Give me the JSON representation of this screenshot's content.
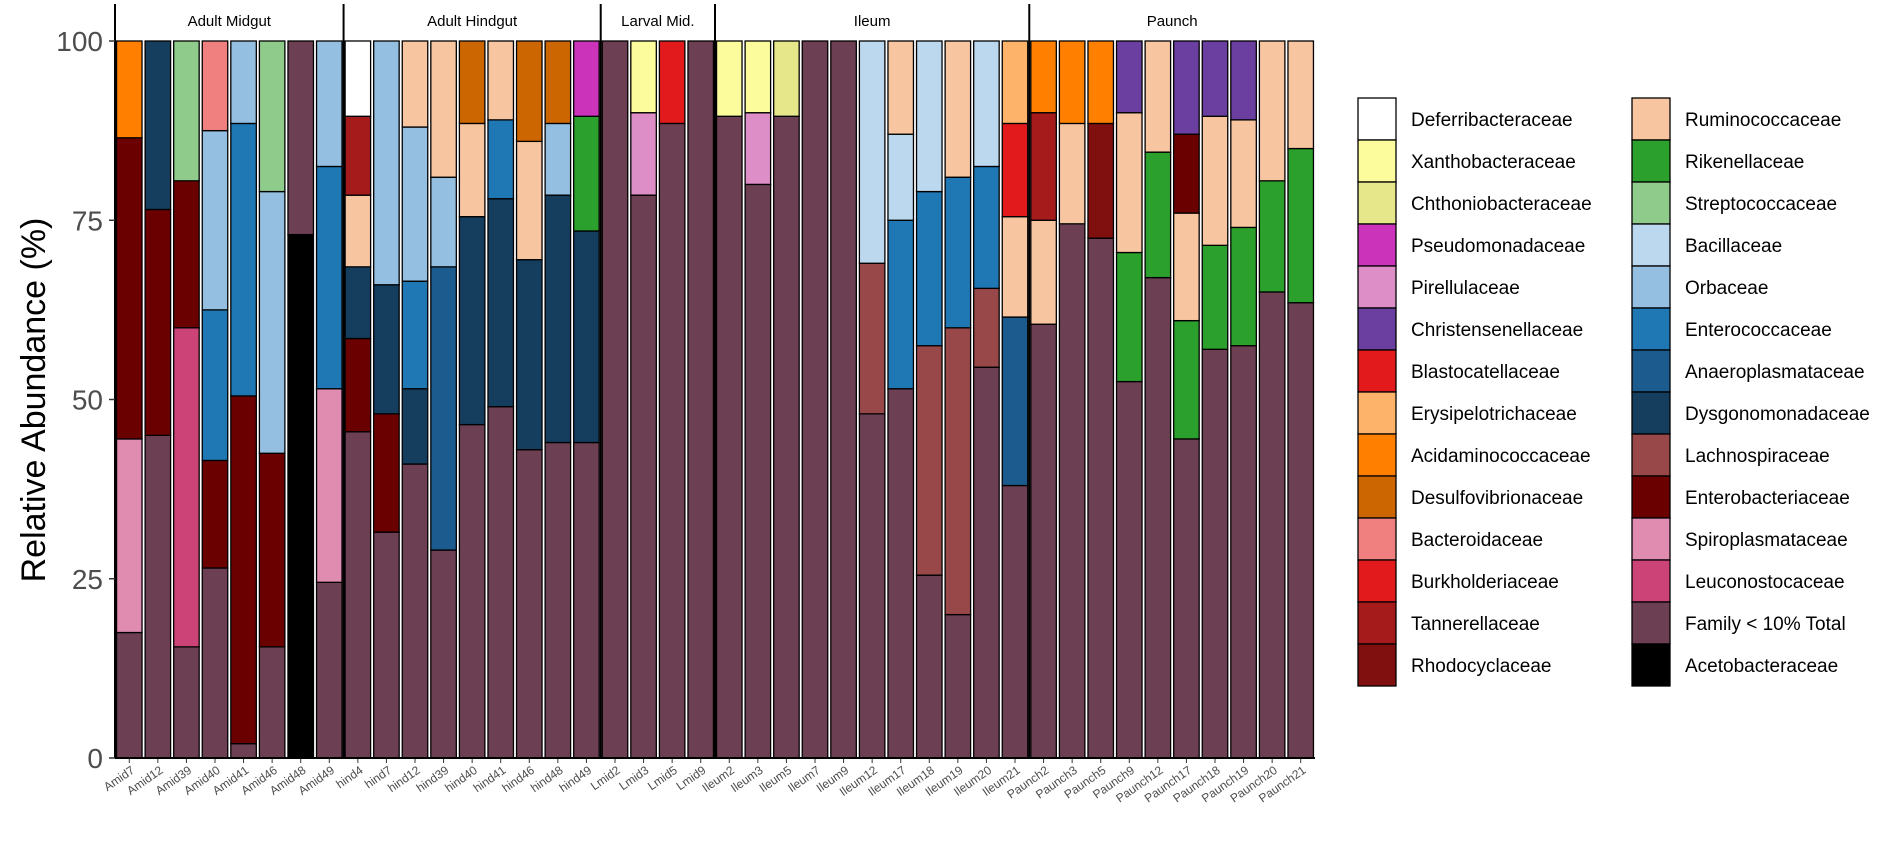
{
  "chart_data": {
    "type": "bar",
    "subtype": "stacked-100",
    "ylabel": "Relative Abundance (%)",
    "ylim": [
      0,
      100
    ],
    "yticks": [
      0,
      25,
      50,
      75,
      100
    ],
    "xlabel": "",
    "facets": [
      {
        "name": "Adult Midgut",
        "samples": [
          {
            "name": "Amid7",
            "segments": [
              [
                "Family < 10% Total",
                17.5
              ],
              [
                "Spiroplasmataceae",
                27
              ],
              [
                "Enterobacteriaceae",
                42
              ],
              [
                "Acidaminococcaceae",
                13.5
              ]
            ]
          },
          {
            "name": "Amid12",
            "segments": [
              [
                "Family < 10% Total",
                45
              ],
              [
                "Enterobacteriaceae",
                31.5
              ],
              [
                "Dysgonomonadaceae",
                23.5
              ]
            ]
          },
          {
            "name": "Amid39",
            "segments": [
              [
                "Family < 10% Total",
                15.5
              ],
              [
                "Leuconostocaceae",
                44.5
              ],
              [
                "Enterobacteriaceae",
                20.5
              ],
              [
                "Streptococcaceae",
                19.5
              ]
            ]
          },
          {
            "name": "Amid40",
            "segments": [
              [
                "Family < 10% Total",
                26.5
              ],
              [
                "Enterobacteriaceae",
                15
              ],
              [
                "Enterococcaceae",
                21
              ],
              [
                "Orbaceae",
                25
              ],
              [
                "Bacteroidaceae",
                12.5
              ]
            ]
          },
          {
            "name": "Amid41",
            "segments": [
              [
                "Family < 10% Total",
                2
              ],
              [
                "Enterobacteriaceae",
                48.5
              ],
              [
                "Enterococcaceae",
                38
              ],
              [
                "Orbaceae",
                11.5
              ]
            ]
          },
          {
            "name": "Amid46",
            "segments": [
              [
                "Family < 10% Total",
                15.5
              ],
              [
                "Enterobacteriaceae",
                27
              ],
              [
                "Orbaceae",
                36.5
              ],
              [
                "Streptococcaceae",
                21
              ]
            ]
          },
          {
            "name": "Amid48",
            "segments": [
              [
                "Acetobacteraceae",
                73
              ],
              [
                "Family < 10% Total",
                27
              ]
            ]
          },
          {
            "name": "Amid49",
            "segments": [
              [
                "Family < 10% Total",
                24.5
              ],
              [
                "Spiroplasmataceae",
                27
              ],
              [
                "Enterococcaceae",
                31
              ],
              [
                "Orbaceae",
                17.5
              ]
            ]
          }
        ]
      },
      {
        "name": "Adult Hindgut",
        "samples": [
          {
            "name": "hind4",
            "segments": [
              [
                "Family < 10% Total",
                45.5
              ],
              [
                "Enterobacteriaceae",
                13
              ],
              [
                "Dysgonomonadaceae",
                10
              ],
              [
                "Ruminococcaceae",
                10
              ],
              [
                "Tannerellaceae",
                11
              ],
              [
                "Deferribacteraceae",
                10.5
              ]
            ]
          },
          {
            "name": "hind7",
            "segments": [
              [
                "Family < 10% Total",
                31.5
              ],
              [
                "Enterobacteriaceae",
                16.5
              ],
              [
                "Dysgonomonadaceae",
                18
              ],
              [
                "Orbaceae",
                34
              ]
            ]
          },
          {
            "name": "hind12",
            "segments": [
              [
                "Family < 10% Total",
                41
              ],
              [
                "Dysgonomonadaceae",
                10.5
              ],
              [
                "Enterococcaceae",
                15
              ],
              [
                "Orbaceae",
                21.5
              ],
              [
                "Ruminococcaceae",
                12
              ]
            ]
          },
          {
            "name": "hind39",
            "segments": [
              [
                "Family < 10% Total",
                29
              ],
              [
                "Anaeroplasmataceae",
                39.5
              ],
              [
                "Orbaceae",
                12.5
              ],
              [
                "Ruminococcaceae",
                19
              ]
            ]
          },
          {
            "name": "hind40",
            "segments": [
              [
                "Family < 10% Total",
                46.5
              ],
              [
                "Dysgonomonadaceae",
                29
              ],
              [
                "Ruminococcaceae",
                13
              ],
              [
                "Desulfovibrionaceae",
                11.5
              ]
            ]
          },
          {
            "name": "hind41",
            "segments": [
              [
                "Family < 10% Total",
                49
              ],
              [
                "Dysgonomonadaceae",
                29
              ],
              [
                "Enterococcaceae",
                11
              ],
              [
                "Ruminococcaceae",
                11
              ]
            ]
          },
          {
            "name": "hind46",
            "segments": [
              [
                "Family < 10% Total",
                43
              ],
              [
                "Dysgonomonadaceae",
                26.5
              ],
              [
                "Ruminococcaceae",
                16.5
              ],
              [
                "Desulfovibrionaceae",
                14
              ]
            ]
          },
          {
            "name": "hind48",
            "segments": [
              [
                "Family < 10% Total",
                44
              ],
              [
                "Dysgonomonadaceae",
                34.5
              ],
              [
                "Orbaceae",
                10
              ],
              [
                "Desulfovibrionaceae",
                11.5
              ]
            ]
          },
          {
            "name": "hind49",
            "segments": [
              [
                "Family < 10% Total",
                44
              ],
              [
                "Dysgonomonadaceae",
                29.5
              ],
              [
                "Rikenellaceae",
                16
              ],
              [
                "Pseudomonadaceae",
                10.5
              ]
            ]
          }
        ]
      },
      {
        "name": "Larval Mid.",
        "samples": [
          {
            "name": "Lmid2",
            "segments": [
              [
                "Family < 10% Total",
                100
              ]
            ]
          },
          {
            "name": "Lmid3",
            "segments": [
              [
                "Family < 10% Total",
                78.5
              ],
              [
                "Pirellulaceae",
                11.5
              ],
              [
                "Xanthobacteraceae",
                10
              ]
            ]
          },
          {
            "name": "Lmid5",
            "segments": [
              [
                "Family < 10% Total",
                88.5
              ],
              [
                "Burkholderiaceae",
                11.5
              ]
            ]
          },
          {
            "name": "Lmid9",
            "segments": [
              [
                "Family < 10% Total",
                100
              ]
            ]
          }
        ]
      },
      {
        "name": "Ileum",
        "samples": [
          {
            "name": "Ileum2",
            "segments": [
              [
                "Family < 10% Total",
                89.5
              ],
              [
                "Xanthobacteraceae",
                10.5
              ]
            ]
          },
          {
            "name": "Ileum3",
            "segments": [
              [
                "Family < 10% Total",
                80
              ],
              [
                "Pirellulaceae",
                10
              ],
              [
                "Xanthobacteraceae",
                10
              ]
            ]
          },
          {
            "name": "Ileum5",
            "segments": [
              [
                "Family < 10% Total",
                89.5
              ],
              [
                "Chthoniobacteraceae",
                10.5
              ]
            ]
          },
          {
            "name": "Ileum7",
            "segments": [
              [
                "Family < 10% Total",
                100
              ]
            ]
          },
          {
            "name": "Ileum9",
            "segments": [
              [
                "Family < 10% Total",
                100
              ]
            ]
          },
          {
            "name": "Ileum12",
            "segments": [
              [
                "Family < 10% Total",
                48
              ],
              [
                "Lachnospiraceae",
                21
              ],
              [
                "Bacillaceae",
                31
              ]
            ]
          },
          {
            "name": "Ileum17",
            "segments": [
              [
                "Family < 10% Total",
                51.5
              ],
              [
                "Enterococcaceae",
                23.5
              ],
              [
                "Bacillaceae",
                12
              ],
              [
                "Ruminococcaceae",
                13
              ]
            ]
          },
          {
            "name": "Ileum18",
            "segments": [
              [
                "Family < 10% Total",
                25.5
              ],
              [
                "Lachnospiraceae",
                32
              ],
              [
                "Enterococcaceae",
                21.5
              ],
              [
                "Bacillaceae",
                21
              ]
            ]
          },
          {
            "name": "Ileum19",
            "segments": [
              [
                "Family < 10% Total",
                20
              ],
              [
                "Lachnospiraceae",
                40
              ],
              [
                "Enterococcaceae",
                21
              ],
              [
                "Ruminococcaceae",
                19
              ]
            ]
          },
          {
            "name": "Ileum20",
            "segments": [
              [
                "Family < 10% Total",
                54.5
              ],
              [
                "Lachnospiraceae",
                11
              ],
              [
                "Enterococcaceae",
                17
              ],
              [
                "Bacillaceae",
                17.5
              ]
            ]
          },
          {
            "name": "Ileum21",
            "segments": [
              [
                "Family < 10% Total",
                38
              ],
              [
                "Anaeroplasmataceae",
                23.5
              ],
              [
                "Ruminococcaceae",
                14
              ],
              [
                "Blastocatellaceae",
                13
              ],
              [
                "Erysipelotrichaceae",
                11.5
              ]
            ]
          }
        ]
      },
      {
        "name": "Paunch",
        "samples": [
          {
            "name": "Paunch2",
            "segments": [
              [
                "Family < 10% Total",
                60.5
              ],
              [
                "Ruminococcaceae",
                14.5
              ],
              [
                "Tannerellaceae",
                15
              ],
              [
                "Acidaminococcaceae",
                10
              ]
            ]
          },
          {
            "name": "Paunch3",
            "segments": [
              [
                "Family < 10% Total",
                74.5
              ],
              [
                "Ruminococcaceae",
                14
              ],
              [
                "Acidaminococcaceae",
                11.5
              ]
            ]
          },
          {
            "name": "Paunch5",
            "segments": [
              [
                "Family < 10% Total",
                72.5
              ],
              [
                "Rhodocyclaceae",
                16
              ],
              [
                "Acidaminococcaceae",
                11.5
              ]
            ]
          },
          {
            "name": "Paunch9",
            "segments": [
              [
                "Family < 10% Total",
                52.5
              ],
              [
                "Rikenellaceae",
                18
              ],
              [
                "Ruminococcaceae",
                19.5
              ],
              [
                "Christensenellaceae",
                10
              ]
            ]
          },
          {
            "name": "Paunch12",
            "segments": [
              [
                "Family < 10% Total",
                67
              ],
              [
                "Rikenellaceae",
                17.5
              ],
              [
                "Ruminococcaceae",
                15.5
              ]
            ]
          },
          {
            "name": "Paunch17",
            "segments": [
              [
                "Family < 10% Total",
                44.5
              ],
              [
                "Rikenellaceae",
                16.5
              ],
              [
                "Ruminococcaceae",
                15
              ],
              [
                "Enterobacteriaceae",
                11
              ],
              [
                "Christensenellaceae",
                13
              ]
            ]
          },
          {
            "name": "Paunch18",
            "segments": [
              [
                "Family < 10% Total",
                57
              ],
              [
                "Rikenellaceae",
                14.5
              ],
              [
                "Ruminococcaceae",
                18
              ],
              [
                "Christensenellaceae",
                10.5
              ]
            ]
          },
          {
            "name": "Paunch19",
            "segments": [
              [
                "Family < 10% Total",
                57.5
              ],
              [
                "Rikenellaceae",
                16.5
              ],
              [
                "Ruminococcaceae",
                15
              ],
              [
                "Christensenellaceae",
                11
              ]
            ]
          },
          {
            "name": "Paunch20",
            "segments": [
              [
                "Family < 10% Total",
                65
              ],
              [
                "Rikenellaceae",
                15.5
              ],
              [
                "Ruminococcaceae",
                19.5
              ]
            ]
          },
          {
            "name": "Paunch21",
            "segments": [
              [
                "Family < 10% Total",
                63.5
              ],
              [
                "Rikenellaceae",
                21.5
              ],
              [
                "Ruminococcaceae",
                15
              ]
            ]
          }
        ]
      }
    ],
    "legend": {
      "position": "right",
      "columns": [
        [
          "Deferribacteraceae",
          "Xanthobacteraceae",
          "Chthoniobacteraceae",
          "Pseudomonadaceae",
          "Pirellulaceae",
          "Christensenellaceae",
          "Blastocatellaceae",
          "Erysipelotrichaceae",
          "Acidaminococcaceae",
          "Desulfovibrionaceae",
          "Bacteroidaceae",
          "Burkholderiaceae",
          "Tannerellaceae",
          "Rhodocyclaceae"
        ],
        [
          "Ruminococcaceae",
          "Rikenellaceae",
          "Streptococcaceae",
          "Bacillaceae",
          "Orbaceae",
          "Enterococcaceae",
          "Anaeroplasmataceae",
          "Dysgonomonadaceae",
          "Lachnospiraceae",
          "Enterobacteriaceae",
          "Spiroplasmataceae",
          "Leuconostocaceae",
          "Family < 10% Total",
          "Acetobacteraceae"
        ]
      ]
    },
    "colors": {
      "Deferribacteraceae": "#ffffff",
      "Xanthobacteraceae": "#fcfc9c",
      "Chthoniobacteraceae": "#e6e68a",
      "Pseudomonadaceae": "#cc33bb",
      "Pirellulaceae": "#dd8ec6",
      "Christensenellaceae": "#6b3fa0",
      "Blastocatellaceae": "#e31a1c",
      "Erysipelotrichaceae": "#fdb46a",
      "Acidaminococcaceae": "#ff8000",
      "Desulfovibrionaceae": "#cc6600",
      "Bacteroidaceae": "#f08080",
      "Burkholderiaceae": "#e31a1c",
      "Tannerellaceae": "#a51a1a",
      "Rhodocyclaceae": "#800f0f",
      "Ruminococcaceae": "#f7c59f",
      "Rikenellaceae": "#2ca02c",
      "Streptococcaceae": "#8fcb8a",
      "Bacillaceae": "#bcd8ee",
      "Orbaceae": "#94bfe0",
      "Enterococcaceae": "#1f77b4",
      "Anaeroplasmataceae": "#1c5b8d",
      "Dysgonomonadaceae": "#143d5e",
      "Lachnospiraceae": "#984848",
      "Enterobacteriaceae": "#6b0000",
      "Spiroplasmataceae": "#e08bb0",
      "Leuconostocaceae": "#cc4477",
      "Family < 10% Total": "#6d3f52",
      "Acetobacteraceae": "#000000"
    }
  }
}
